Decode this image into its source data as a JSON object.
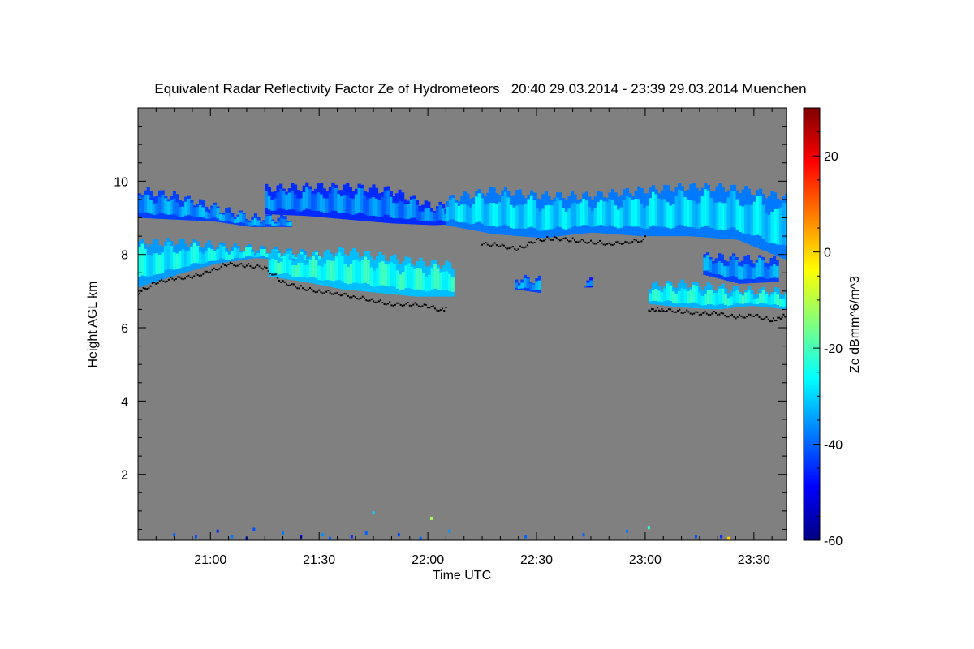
{
  "chart_data": {
    "type": "heatmap",
    "title": "Equivalent Radar Reflectivity Factor Ze of Hydrometeors   20:40 29.03.2014 - 23:39 29.03.2014 Muenchen",
    "xlabel": "Time UTC",
    "ylabel": "Height AGL km",
    "colorbar_label": "Ze dBmm^6/m^3",
    "x_range_minutes_utc": [
      1240,
      1419
    ],
    "y_range_km": [
      0.2,
      12.0
    ],
    "colorbar_range": [
      -60,
      30
    ],
    "x_ticks": [
      {
        "minute": 1260,
        "label": "21:00"
      },
      {
        "minute": 1290,
        "label": "21:30"
      },
      {
        "minute": 1320,
        "label": "22:00"
      },
      {
        "minute": 1350,
        "label": "22:30"
      },
      {
        "minute": 1380,
        "label": "23:00"
      },
      {
        "minute": 1410,
        "label": "23:30"
      }
    ],
    "y_ticks": [
      {
        "value": 2,
        "label": "2"
      },
      {
        "value": 4,
        "label": "4"
      },
      {
        "value": 6,
        "label": "6"
      },
      {
        "value": 8,
        "label": "8"
      },
      {
        "value": 10,
        "label": "10"
      }
    ],
    "colorbar_ticks": [
      {
        "value": 20,
        "label": "20"
      },
      {
        "value": 0,
        "label": "0"
      },
      {
        "value": -20,
        "label": "-20"
      },
      {
        "value": -40,
        "label": "-40"
      },
      {
        "value": -60,
        "label": "-60"
      }
    ],
    "background_color": "#808080",
    "colormap": [
      "#00007f",
      "#0000ff",
      "#007fff",
      "#00ffff",
      "#7fff7f",
      "#ffff00",
      "#ff7f00",
      "#ff0000",
      "#7f0000"
    ],
    "cloud_layers": [
      {
        "name": "upper-band-left",
        "x_start": 1240,
        "x_end": 1282,
        "top": [
          9.75,
          9.6,
          9.3,
          9.0,
          9.0
        ],
        "base": [
          9.0,
          8.95,
          8.9,
          8.75,
          8.75
        ],
        "ze": -38
      },
      {
        "name": "upper-band-mid",
        "x_start": 1275,
        "x_end": 1333,
        "top": [
          9.8,
          9.85,
          9.85,
          9.75,
          9.3,
          9.4
        ],
        "base": [
          9.1,
          9.05,
          8.95,
          8.85,
          8.8,
          8.85
        ],
        "ze": -40
      },
      {
        "name": "upper-band-right",
        "x_start": 1325,
        "x_end": 1419,
        "top": [
          9.5,
          9.75,
          9.6,
          9.6,
          9.75,
          9.85,
          9.8,
          9.55
        ],
        "base": [
          8.8,
          8.55,
          8.45,
          8.6,
          8.5,
          8.5,
          8.4,
          7.85
        ],
        "ze": -33
      },
      {
        "name": "lower-layer-left",
        "x_start": 1240,
        "x_end": 1294,
        "top": [
          8.3,
          8.35,
          8.25,
          8.15,
          8.05,
          7.95
        ],
        "base": [
          7.1,
          7.45,
          7.75,
          7.9,
          7.85,
          7.7
        ],
        "ze": -30
      },
      {
        "name": "lower-layer-mid",
        "x_start": 1276,
        "x_end": 1327,
        "top": [
          8.05,
          7.9,
          8.1,
          7.95,
          7.8,
          7.7
        ],
        "base": [
          7.4,
          7.25,
          7.05,
          6.95,
          6.85,
          6.85
        ],
        "ze": -27
      },
      {
        "name": "patch-22-40",
        "x_start": 1344,
        "x_end": 1351,
        "top": [
          7.35,
          7.3
        ],
        "base": [
          7.05,
          6.95
        ],
        "ze": -38
      },
      {
        "name": "patch-22-53",
        "x_start": 1363,
        "x_end": 1365,
        "top": [
          7.25,
          7.25
        ],
        "base": [
          7.1,
          7.1
        ],
        "ze": -42
      },
      {
        "name": "lower-layer-right",
        "x_start": 1381,
        "x_end": 1419,
        "top": [
          7.15,
          7.2,
          7.1,
          7.0,
          7.0
        ],
        "base": [
          6.65,
          6.55,
          6.5,
          6.6,
          6.5
        ],
        "ze": -28
      },
      {
        "name": "upper-patch-right",
        "x_start": 1396,
        "x_end": 1416,
        "top": [
          7.95,
          7.9,
          7.85
        ],
        "base": [
          7.45,
          7.2,
          7.25
        ],
        "ze": -38
      }
    ],
    "cloud_base_points": [
      [
        1240,
        7.05
      ],
      [
        1245,
        7.35
      ],
      [
        1250,
        7.45
      ],
      [
        1255,
        7.5
      ],
      [
        1260,
        7.65
      ],
      [
        1265,
        7.85
      ],
      [
        1270,
        7.8
      ],
      [
        1275,
        7.75
      ],
      [
        1280,
        7.35
      ],
      [
        1285,
        7.2
      ],
      [
        1290,
        7.1
      ],
      [
        1295,
        7.05
      ],
      [
        1300,
        6.95
      ],
      [
        1305,
        6.85
      ],
      [
        1310,
        6.75
      ],
      [
        1315,
        6.75
      ],
      [
        1320,
        6.7
      ],
      [
        1325,
        6.55
      ],
      [
        1335,
        8.4
      ],
      [
        1340,
        8.35
      ],
      [
        1345,
        8.25
      ],
      [
        1350,
        8.5
      ],
      [
        1355,
        8.55
      ],
      [
        1360,
        8.5
      ],
      [
        1365,
        8.45
      ],
      [
        1370,
        8.4
      ],
      [
        1375,
        8.45
      ],
      [
        1380,
        8.5
      ],
      [
        1381,
        6.6
      ],
      [
        1385,
        6.6
      ],
      [
        1390,
        6.55
      ],
      [
        1395,
        6.5
      ],
      [
        1400,
        6.5
      ],
      [
        1405,
        6.4
      ],
      [
        1410,
        6.45
      ],
      [
        1415,
        6.3
      ],
      [
        1419,
        6.45
      ]
    ],
    "ground_clutter": [
      [
        1250,
        0.35,
        -40
      ],
      [
        1256,
        0.3,
        -42
      ],
      [
        1262,
        0.45,
        -45
      ],
      [
        1266,
        0.3,
        -38
      ],
      [
        1270,
        0.25,
        -45
      ],
      [
        1272,
        0.5,
        -42
      ],
      [
        1280,
        0.4,
        -38
      ],
      [
        1285,
        0.3,
        -48
      ],
      [
        1291,
        0.35,
        -36
      ],
      [
        1293,
        0.25,
        -40
      ],
      [
        1299,
        0.3,
        -45
      ],
      [
        1303,
        0.4,
        -40
      ],
      [
        1305,
        0.95,
        -30
      ],
      [
        1312,
        0.35,
        -42
      ],
      [
        1318,
        0.25,
        -40
      ],
      [
        1321,
        0.8,
        -12
      ],
      [
        1326,
        0.45,
        -36
      ],
      [
        1347,
        0.3,
        -40
      ],
      [
        1363,
        0.35,
        -40
      ],
      [
        1375,
        0.45,
        -38
      ],
      [
        1381,
        0.55,
        -22
      ],
      [
        1394,
        0.3,
        -42
      ],
      [
        1401,
        0.3,
        -45
      ],
      [
        1403,
        0.25,
        0
      ]
    ]
  }
}
